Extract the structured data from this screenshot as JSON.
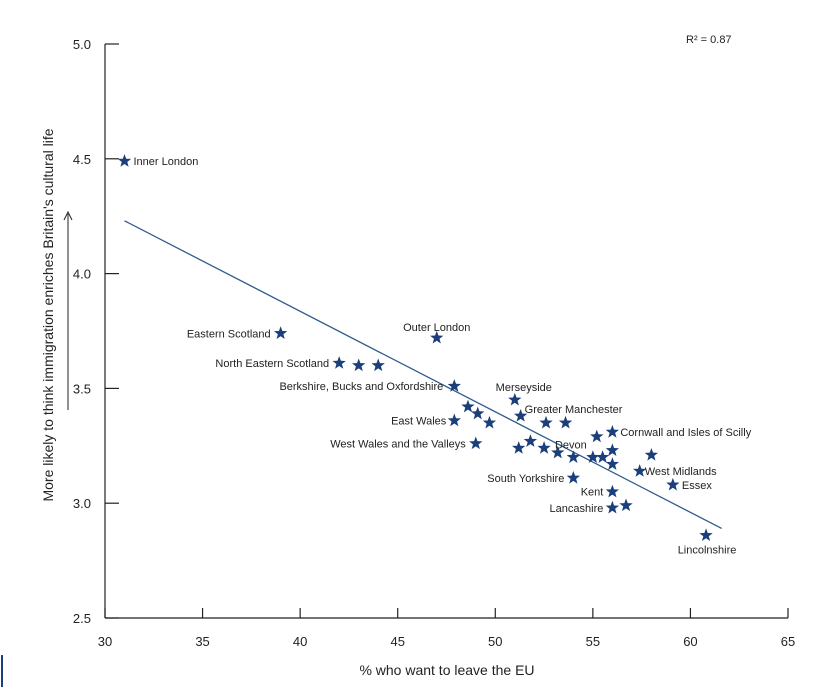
{
  "chart_data": {
    "type": "scatter",
    "xlabel": "% who want to leave the EU",
    "ylabel": "More likely to think immigration enriches Britain's cultural life",
    "xlim": [
      30,
      65
    ],
    "ylim": [
      2.5,
      5.0
    ],
    "x_ticks": [
      "30",
      "35",
      "40",
      "45",
      "50",
      "55",
      "60",
      "65"
    ],
    "y_ticks": [
      "2.5",
      "3.0",
      "3.5",
      "4.0",
      "4.5",
      "5.0"
    ],
    "r2_label": "R² = 0.87",
    "marker_color": "#1a3f7a",
    "marker": "star",
    "trendline": {
      "x": [
        31,
        61.6
      ],
      "y": [
        4.23,
        2.89
      ]
    },
    "points": [
      {
        "x": 31.0,
        "y": 4.49,
        "label": "Inner London"
      },
      {
        "x": 39.0,
        "y": 3.74,
        "label": "Eastern Scotland"
      },
      {
        "x": 42.0,
        "y": 3.61,
        "label": "North Eastern Scotland"
      },
      {
        "x": 43.0,
        "y": 3.6,
        "label": ""
      },
      {
        "x": 44.0,
        "y": 3.6,
        "label": ""
      },
      {
        "x": 47.0,
        "y": 3.72,
        "label": "Outer London"
      },
      {
        "x": 47.9,
        "y": 3.51,
        "label": "Berkshire, Bucks and Oxfordshire"
      },
      {
        "x": 47.9,
        "y": 3.36,
        "label": "East Wales"
      },
      {
        "x": 48.6,
        "y": 3.42,
        "label": ""
      },
      {
        "x": 49.1,
        "y": 3.39,
        "label": ""
      },
      {
        "x": 49.7,
        "y": 3.35,
        "label": ""
      },
      {
        "x": 49.0,
        "y": 3.26,
        "label": "West Wales and the Valleys"
      },
      {
        "x": 51.0,
        "y": 3.45,
        "label": "Merseyside"
      },
      {
        "x": 51.3,
        "y": 3.38,
        "label": "Greater Manchester"
      },
      {
        "x": 51.2,
        "y": 3.24,
        "label": ""
      },
      {
        "x": 51.8,
        "y": 3.27,
        "label": ""
      },
      {
        "x": 52.5,
        "y": 3.24,
        "label": ""
      },
      {
        "x": 52.6,
        "y": 3.35,
        "label": ""
      },
      {
        "x": 53.2,
        "y": 3.22,
        "label": ""
      },
      {
        "x": 53.6,
        "y": 3.35,
        "label": ""
      },
      {
        "x": 54.0,
        "y": 3.2,
        "label": ""
      },
      {
        "x": 54.0,
        "y": 3.11,
        "label": "South Yorkshire"
      },
      {
        "x": 55.2,
        "y": 3.29,
        "label": "Devon"
      },
      {
        "x": 55.0,
        "y": 3.2,
        "label": ""
      },
      {
        "x": 55.5,
        "y": 3.2,
        "label": ""
      },
      {
        "x": 56.0,
        "y": 3.31,
        "label": "Cornwall and Isles of Scilly"
      },
      {
        "x": 56.0,
        "y": 3.23,
        "label": ""
      },
      {
        "x": 56.0,
        "y": 3.17,
        "label": ""
      },
      {
        "x": 56.0,
        "y": 3.05,
        "label": "Kent"
      },
      {
        "x": 56.0,
        "y": 2.98,
        "label": "Lancashire"
      },
      {
        "x": 56.7,
        "y": 2.99,
        "label": ""
      },
      {
        "x": 58.0,
        "y": 3.21,
        "label": ""
      },
      {
        "x": 57.4,
        "y": 3.14,
        "label": "West Midlands"
      },
      {
        "x": 59.1,
        "y": 3.08,
        "label": "Essex"
      },
      {
        "x": 60.8,
        "y": 2.86,
        "label": "Lincolnshire"
      }
    ]
  }
}
